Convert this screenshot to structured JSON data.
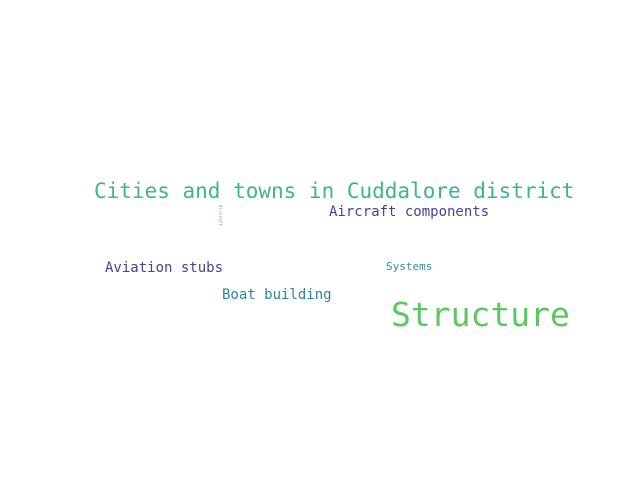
{
  "word_cloud": {
    "words": [
      {
        "id": "cities",
        "text": "Cities and towns in Cuddalore district",
        "color": "#3fb58a"
      },
      {
        "id": "aircraft",
        "text": "Aircraft components",
        "color": "#4a4190"
      },
      {
        "id": "aviation",
        "text": "Aviation stubs",
        "color": "#4a4190"
      },
      {
        "id": "systems",
        "text": "Systems",
        "color": "#3a8b9b"
      },
      {
        "id": "boat",
        "text": "Boat building",
        "color": "#31839a"
      },
      {
        "id": "structure",
        "text": "Structure",
        "color": "#5bc75e"
      },
      {
        "id": "vertical",
        "text": "Aircraft",
        "color": "#6a8fb5"
      }
    ]
  }
}
